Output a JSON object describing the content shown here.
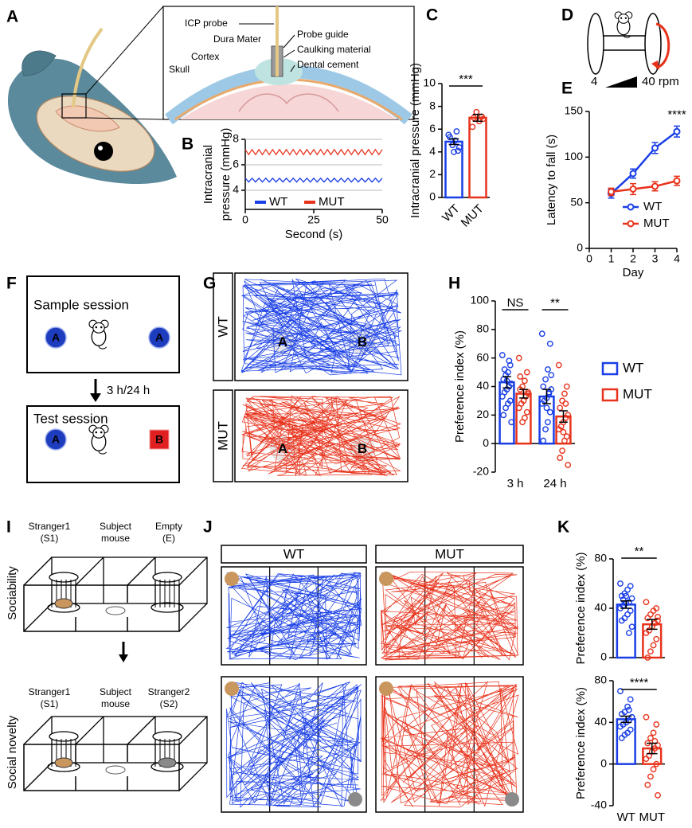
{
  "panel_labels": [
    "A",
    "B",
    "C",
    "D",
    "E",
    "F",
    "G",
    "H",
    "I",
    "J",
    "K"
  ],
  "diagram_a": {
    "labels": [
      "ICP probe",
      "Dura Mater",
      "Cortex",
      "Skull",
      "Probe guide",
      "Caulking material",
      "Dental cement"
    ]
  },
  "diagram_d": {
    "start": "4",
    "end": "40 rpm"
  },
  "diagram_f": {
    "sample": "Sample session",
    "test": "Test session",
    "delay": "3 h/24 h",
    "objects": [
      "A",
      "A",
      "A",
      "B"
    ]
  },
  "diagram_g": {
    "groups": [
      "WT",
      "MUT"
    ],
    "objects": [
      "A",
      "B",
      "A",
      "B"
    ]
  },
  "diagram_i": {
    "rows": [
      "Sociability",
      "Social novelty"
    ],
    "top_labels": [
      [
        "Stranger1",
        "(S1)"
      ],
      [
        "Subject",
        "mouse"
      ],
      [
        "Empty",
        "(E)"
      ]
    ],
    "bottom_labels": [
      [
        "Stranger1",
        "(S1)"
      ],
      [
        "Subject",
        "mouse"
      ],
      [
        "Stranger2",
        "(S2)"
      ]
    ]
  },
  "diagram_j": {
    "groups": [
      "WT",
      "MUT"
    ]
  },
  "chart_data": [
    {
      "type": "line",
      "x": [
        0,
        1.25,
        2.5,
        3.75,
        5,
        6.25,
        7.5,
        8.75,
        10,
        11.25,
        12.5,
        13.75,
        15,
        16.25,
        17.5,
        18.75,
        20,
        21.25,
        22.5,
        23.75,
        25,
        26.25,
        27.5,
        28.75,
        30,
        31.25,
        32.5,
        33.75,
        35,
        36.25,
        37.5,
        38.75,
        40,
        41.25,
        42.5,
        43.75,
        45,
        46.25,
        47.5,
        48.75,
        50
      ],
      "series": [
        {
          "name": "WT",
          "color": "#1a3fe6",
          "values": [
            4.95,
            4.65,
            4.95,
            4.65,
            4.95,
            4.65,
            4.95,
            4.65,
            4.95,
            4.65,
            4.95,
            4.65,
            4.95,
            4.65,
            4.95,
            4.65,
            4.95,
            4.65,
            4.95,
            4.65,
            4.95,
            4.65,
            4.95,
            4.65,
            4.95,
            4.65,
            4.95,
            4.65,
            4.95,
            4.65,
            4.95,
            4.65,
            4.95,
            4.65,
            4.95,
            4.65,
            4.95,
            4.65,
            4.95,
            4.65,
            4.95
          ]
        },
        {
          "name": "MUT",
          "color": "#e8331c",
          "values": [
            7.2,
            6.8,
            7.2,
            6.8,
            7.2,
            6.8,
            7.2,
            6.8,
            7.2,
            6.8,
            7.2,
            6.8,
            7.2,
            6.8,
            7.2,
            6.8,
            7.2,
            6.8,
            7.2,
            6.8,
            7.2,
            6.8,
            7.2,
            6.8,
            7.2,
            6.8,
            7.2,
            6.8,
            7.2,
            6.8,
            7.2,
            6.8,
            7.2,
            6.8,
            7.2,
            6.8,
            7.2,
            6.8,
            7.2,
            6.8,
            7.2
          ]
        }
      ],
      "ylabel": [
        "Intracranial",
        "pressure (mmHg)"
      ],
      "xlabel": "Second (s)",
      "xlim": [
        0,
        50
      ],
      "xticks": [
        0,
        25,
        50
      ],
      "ylim": [
        2.5,
        8
      ],
      "yticks": [
        4,
        6,
        8
      ],
      "grid": true,
      "legend": "bottom"
    },
    {
      "type": "bar",
      "categories": [
        "WT",
        "MUT"
      ],
      "colors": [
        "#1a3fe6",
        "#e8331c"
      ],
      "values": [
        4.9,
        7.0
      ],
      "errors": [
        0.25,
        0.3
      ],
      "points": [
        [
          5.5,
          4.1,
          5.0,
          4.6,
          5.3,
          4.4,
          5.8,
          4.0
        ],
        [
          6.2,
          7.1,
          6.7,
          7.5,
          7.0,
          6.9
        ]
      ],
      "ylabel": "Intracranial pressure (mmHg)",
      "ylim": [
        0,
        10
      ],
      "yticks": [
        0,
        2,
        4,
        6,
        8,
        10
      ],
      "significance": "***"
    },
    {
      "type": "line",
      "x": [
        1,
        2,
        3,
        4
      ],
      "series": [
        {
          "name": "WT",
          "color": "#1a3fe6",
          "values": [
            60,
            82,
            110,
            128
          ],
          "errors": [
            5,
            5,
            6,
            6
          ]
        },
        {
          "name": "MUT",
          "color": "#e8331c",
          "values": [
            62,
            65,
            68,
            74
          ],
          "errors": [
            4,
            6,
            5,
            5
          ]
        }
      ],
      "xlabel": "Day",
      "ylabel": "Latency to fall (s)",
      "xlim": [
        0,
        4
      ],
      "xticks": [
        0,
        1,
        2,
        3,
        4
      ],
      "ylim": [
        0,
        150
      ],
      "yticks": [
        0,
        50,
        100,
        150
      ],
      "grid": false,
      "legend": "lower right",
      "markers": true,
      "annotation": "****"
    },
    {
      "type": "bar",
      "categories": [
        "3 h",
        "24 h"
      ],
      "series": [
        {
          "name": "WT",
          "color": "#1a3fe6",
          "values": [
            43,
            33
          ],
          "errors": [
            4,
            5
          ],
          "points": [
            [
              62,
              55,
              50,
              48,
              45,
              42,
              40,
              38,
              36,
              33,
              30,
              28,
              25,
              20,
              15,
              58,
              44,
              52
            ],
            [
              77,
              70,
              52,
              45,
              40,
              38,
              35,
              32,
              30,
              28,
              22,
              15,
              10,
              2,
              48,
              36,
              25
            ]
          ]
        },
        {
          "name": "MUT",
          "color": "#e8331c",
          "values": [
            35,
            19
          ],
          "errors": [
            3,
            4
          ],
          "points": [
            [
              60,
              50,
              44,
              40,
              38,
              35,
              33,
              30,
              28,
              25,
              22,
              18,
              15,
              47,
              36
            ],
            [
              55,
              40,
              35,
              30,
              25,
              20,
              18,
              15,
              12,
              10,
              5,
              2,
              -5,
              -10,
              -15,
              28,
              8
            ]
          ]
        }
      ],
      "ylabel": "Preference index (%)",
      "ylim": [
        -20,
        100
      ],
      "yticks": [
        -20,
        0,
        20,
        40,
        60,
        80,
        100
      ],
      "significance": [
        "NS",
        "**"
      ],
      "legend": "right"
    },
    {
      "type": "bar",
      "categories": [
        null,
        null
      ],
      "colors": [
        "#1a3fe6",
        "#e8331c"
      ],
      "values": [
        43,
        27
      ],
      "errors": [
        3,
        4
      ],
      "points": [
        [
          60,
          58,
          55,
          52,
          50,
          48,
          45,
          44,
          42,
          40,
          38,
          35,
          32,
          30,
          25,
          20,
          50,
          47
        ],
        [
          45,
          40,
          38,
          35,
          32,
          30,
          28,
          25,
          22,
          20,
          15,
          10,
          5,
          0,
          33
        ]
      ],
      "ylabel": "Preference index (%)",
      "ylim": [
        0,
        80
      ],
      "yticks": [
        0,
        40,
        80
      ],
      "significance": "**"
    },
    {
      "type": "bar",
      "categories": [
        "WT",
        "MUT"
      ],
      "colors": [
        "#1a3fe6",
        "#e8331c"
      ],
      "values": [
        43,
        15
      ],
      "errors": [
        3,
        5
      ],
      "points": [
        [
          70,
          62,
          55,
          50,
          48,
          45,
          42,
          40,
          38,
          36,
          33,
          30,
          28,
          25,
          45,
          52
        ],
        [
          45,
          38,
          30,
          25,
          20,
          18,
          15,
          12,
          8,
          5,
          0,
          -5,
          -12,
          -20,
          -30,
          22
        ]
      ],
      "ylabel": "Preference index (%)",
      "ylim": [
        -40,
        80
      ],
      "yticks": [
        -40,
        0,
        40,
        80
      ],
      "significance": "****"
    }
  ]
}
